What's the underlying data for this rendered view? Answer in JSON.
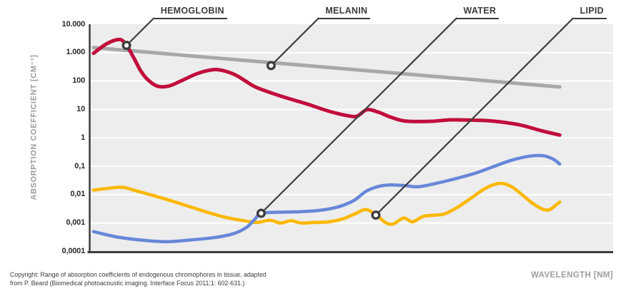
{
  "figure": {
    "copyright_line1": "Copyright: Range of absorption coefficients of endogenous chromophores in tissue, adapted",
    "copyright_line2": "from P. Beard (Biomedical photoacoustic imaging. Interface Focus 2011;1: 602-631.)"
  },
  "colors": {
    "plot_background": "#ededed",
    "gridline": "#ffffff",
    "axis": "#3d3d3d",
    "annotation": "#3d3d3d",
    "tick_text": "#2a2a2a",
    "muted_text": "#9c9c9c"
  },
  "chart_data": {
    "type": "line",
    "title": "",
    "x_axis": {
      "label": "WAVELENGTH [NM]",
      "tick_labels_visible": false
    },
    "y_axis": {
      "label": "ABSORPTION COEFFICIENT [CM⁻¹]",
      "scale": "log10",
      "range": [
        0.0001,
        10000
      ],
      "tick_labels": [
        "10.000",
        "1.000",
        "100",
        "10",
        "1",
        "0,1",
        "0,01",
        "0,001",
        "0,0001"
      ],
      "tick_values": [
        10000,
        1000,
        100,
        10,
        1,
        0.1,
        0.01,
        0.001,
        0.0001
      ]
    },
    "grid": "horizontal white line per decade",
    "series": [
      {
        "name": "MELANIN",
        "color": "#a8a8a8",
        "stroke_width": 5,
        "points": [
          [
            0.008,
            1500
          ],
          [
            0.898,
            62
          ]
        ]
      },
      {
        "name": "HEMOGLOBIN",
        "color": "#c10e3c",
        "stroke_width": 5,
        "points": [
          [
            0.008,
            950
          ],
          [
            0.034,
            2100
          ],
          [
            0.058,
            2900
          ],
          [
            0.071,
            1800
          ],
          [
            0.085,
            650
          ],
          [
            0.098,
            230
          ],
          [
            0.112,
            110
          ],
          [
            0.13,
            66
          ],
          [
            0.152,
            67
          ],
          [
            0.177,
            105
          ],
          [
            0.205,
            180
          ],
          [
            0.232,
            245
          ],
          [
            0.252,
            240
          ],
          [
            0.28,
            160
          ],
          [
            0.314,
            66
          ],
          [
            0.341,
            42
          ],
          [
            0.375,
            26
          ],
          [
            0.416,
            15.5
          ],
          [
            0.457,
            8.7
          ],
          [
            0.496,
            5.9
          ],
          [
            0.512,
            5.9
          ],
          [
            0.53,
            9.8
          ],
          [
            0.552,
            8.0
          ],
          [
            0.576,
            5.3
          ],
          [
            0.603,
            3.9
          ],
          [
            0.65,
            3.8
          ],
          [
            0.69,
            4.3
          ],
          [
            0.73,
            4.2
          ],
          [
            0.77,
            3.9
          ],
          [
            0.82,
            2.9
          ],
          [
            0.862,
            1.8
          ],
          [
            0.898,
            1.25
          ]
        ]
      },
      {
        "name": "LIPID",
        "color": "#fbb800",
        "stroke_width": 4.5,
        "points": [
          [
            0.008,
            0.0145
          ],
          [
            0.04,
            0.017
          ],
          [
            0.065,
            0.018
          ],
          [
            0.09,
            0.0135
          ],
          [
            0.123,
            0.0092
          ],
          [
            0.157,
            0.006
          ],
          [
            0.191,
            0.0038
          ],
          [
            0.225,
            0.0024
          ],
          [
            0.259,
            0.0016
          ],
          [
            0.29,
            0.00125
          ],
          [
            0.32,
            0.00105
          ],
          [
            0.345,
            0.00125
          ],
          [
            0.365,
            0.001
          ],
          [
            0.385,
            0.0012
          ],
          [
            0.405,
            0.001
          ],
          [
            0.43,
            0.00105
          ],
          [
            0.458,
            0.0011
          ],
          [
            0.484,
            0.0014
          ],
          [
            0.507,
            0.0021
          ],
          [
            0.528,
            0.003
          ],
          [
            0.548,
            0.0019
          ],
          [
            0.565,
            0.00105
          ],
          [
            0.58,
            0.00092
          ],
          [
            0.6,
            0.0015
          ],
          [
            0.617,
            0.0011
          ],
          [
            0.637,
            0.0017
          ],
          [
            0.66,
            0.0019
          ],
          [
            0.678,
            0.0021
          ],
          [
            0.703,
            0.0036
          ],
          [
            0.73,
            0.0078
          ],
          [
            0.757,
            0.017
          ],
          [
            0.784,
            0.025
          ],
          [
            0.806,
            0.019
          ],
          [
            0.826,
            0.01
          ],
          [
            0.846,
            0.005
          ],
          [
            0.865,
            0.0031
          ],
          [
            0.878,
            0.0029
          ],
          [
            0.891,
            0.0043
          ],
          [
            0.898,
            0.0055
          ]
        ]
      },
      {
        "name": "WATER",
        "color": "#6787d8",
        "stroke_width": 4.5,
        "points": [
          [
            0.008,
            0.0005
          ],
          [
            0.05,
            0.00033
          ],
          [
            0.1,
            0.00025
          ],
          [
            0.145,
            0.00022
          ],
          [
            0.19,
            0.00025
          ],
          [
            0.24,
            0.00031
          ],
          [
            0.275,
            0.00042
          ],
          [
            0.3,
            0.0007
          ],
          [
            0.315,
            0.0013
          ],
          [
            0.328,
            0.0022
          ],
          [
            0.36,
            0.0024
          ],
          [
            0.4,
            0.0025
          ],
          [
            0.44,
            0.0028
          ],
          [
            0.475,
            0.0037
          ],
          [
            0.505,
            0.0062
          ],
          [
            0.528,
            0.013
          ],
          [
            0.55,
            0.019
          ],
          [
            0.573,
            0.022
          ],
          [
            0.6,
            0.021
          ],
          [
            0.628,
            0.019
          ],
          [
            0.662,
            0.025
          ],
          [
            0.703,
            0.038
          ],
          [
            0.737,
            0.057
          ],
          [
            0.771,
            0.096
          ],
          [
            0.805,
            0.16
          ],
          [
            0.839,
            0.225
          ],
          [
            0.866,
            0.235
          ],
          [
            0.885,
            0.18
          ],
          [
            0.898,
            0.12
          ]
        ]
      }
    ],
    "annotations": [
      {
        "label": "HEMOGLOBIN",
        "series": "HEMOGLOBIN",
        "anchor": [
          0.071,
          1800
        ]
      },
      {
        "label": "MELANIN",
        "series": "MELANIN",
        "anchor": [
          0.347,
          350
        ]
      },
      {
        "label": "WATER",
        "series": "WATER",
        "anchor": [
          0.328,
          0.0022
        ]
      },
      {
        "label": "LIPID",
        "series": "LIPID",
        "anchor": [
          0.547,
          0.0019
        ]
      }
    ]
  }
}
